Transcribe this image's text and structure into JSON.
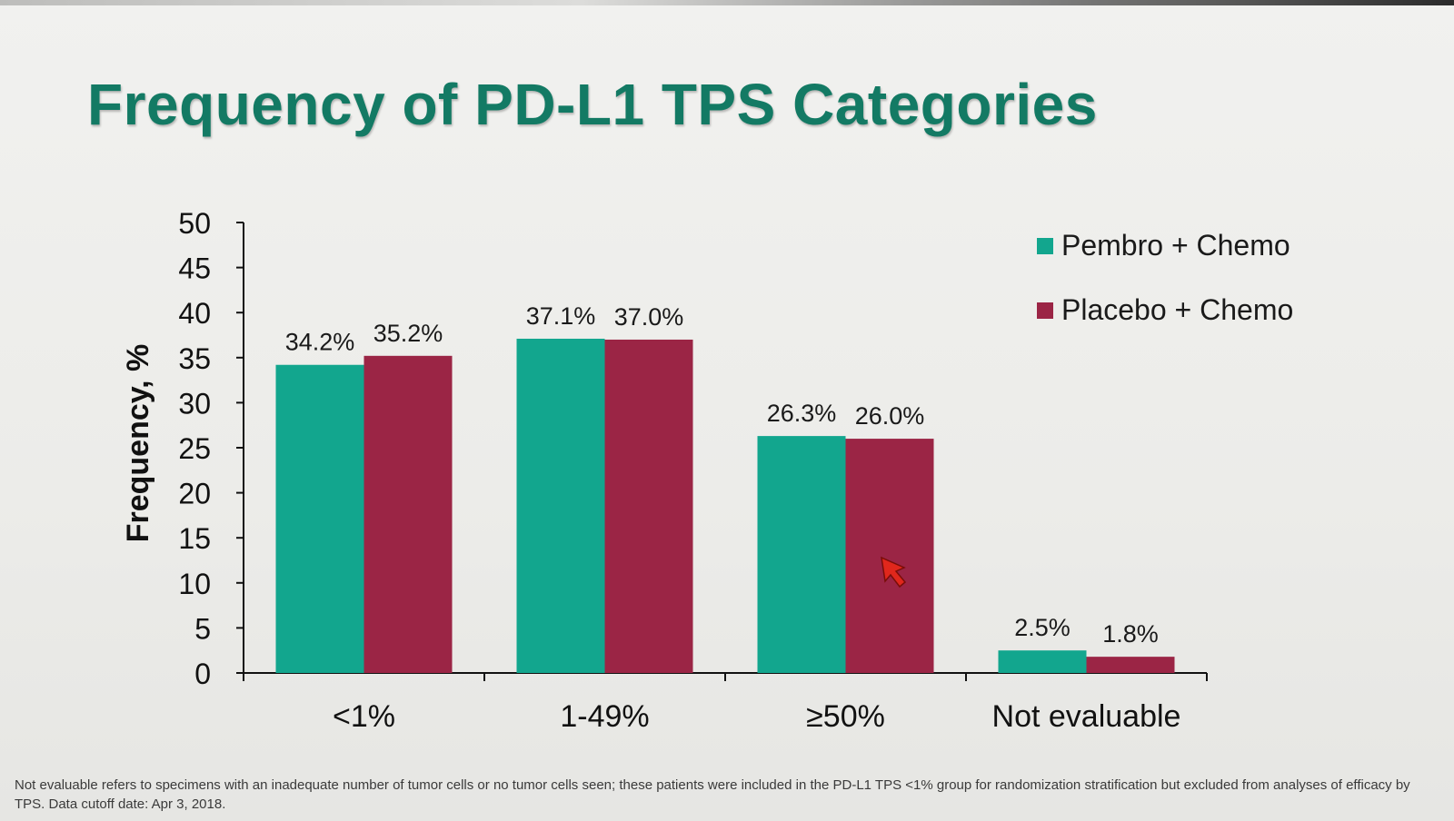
{
  "chart_data": {
    "type": "bar",
    "title": "Frequency of PD-L1 TPS Categories",
    "ylabel": "Frequency, %",
    "xlabel": "",
    "ylim": [
      0,
      50
    ],
    "yticks": [
      0,
      5,
      10,
      15,
      20,
      25,
      30,
      35,
      40,
      45,
      50
    ],
    "categories": [
      "<1%",
      "1-49%",
      "≥50%",
      "Not evaluable"
    ],
    "series": [
      {
        "name": "Pembro + Chemo",
        "color": "#12a68e",
        "values": [
          34.2,
          37.1,
          26.3,
          2.5
        ],
        "labels": [
          "34.2%",
          "37.1%",
          "26.3%",
          "2.5%"
        ]
      },
      {
        "name": "Placebo + Chemo",
        "color": "#9b2545",
        "values": [
          35.2,
          37.0,
          26.0,
          1.8
        ],
        "labels": [
          "35.2%",
          "37.0%",
          "26.0%",
          "1.8%"
        ]
      }
    ],
    "legend_position": "top-right",
    "grid": false
  },
  "footnote": "Not evaluable refers to specimens with an inadequate number of tumor cells or no tumor cells seen; these patients were included in the PD-L1 TPS <1% group for randomization stratification but excluded from analyses of efficacy by TPS. Data cutoff date: Apr 3, 2018.",
  "colors": {
    "title": "#137a64",
    "axis": "#111111",
    "pointer": "#e0271c"
  },
  "icons": {
    "cursor": "pointer-arrow-icon"
  }
}
